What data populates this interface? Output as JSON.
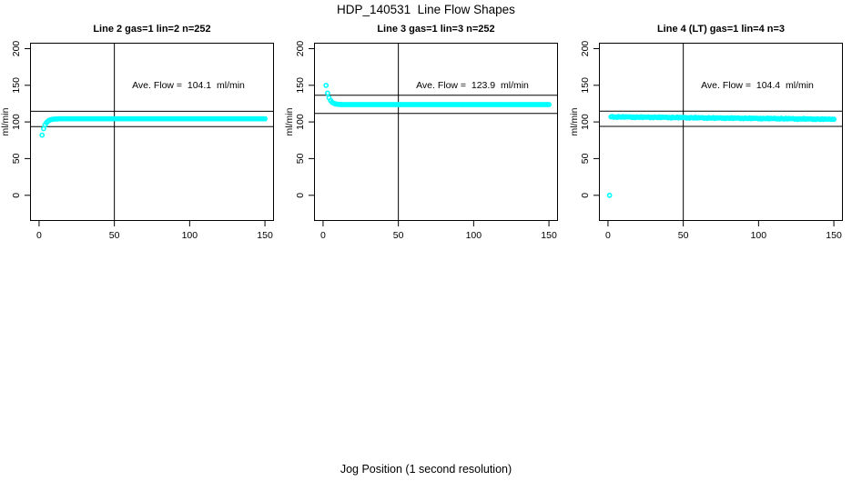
{
  "figure": {
    "title": "HDP_140531  Line Flow Shapes",
    "xlabel": "Jog Position (1 second resolution)"
  },
  "chart_data": [
    {
      "type": "scatter",
      "title": "Line 2 gas=1 lin=2 n=252",
      "annotation": "Ave. Flow =  104.1  ml/min",
      "ave_flow": 104.1,
      "ylabel": "ml/min",
      "point_color": "#00ffff",
      "line_color": "#000000",
      "xlim": [
        -6,
        156
      ],
      "ylim": [
        -35,
        208
      ],
      "x_ticks": [
        0,
        50,
        100,
        150
      ],
      "y_ticks": [
        0,
        50,
        100,
        150,
        200
      ],
      "vline_x": 50,
      "ref_lines": [
        114.5,
        93.7
      ],
      "x": [
        2,
        3,
        4,
        5,
        6,
        7,
        8,
        9,
        10,
        11,
        12,
        13,
        14,
        15,
        16,
        17,
        18,
        19,
        20,
        21,
        22,
        23,
        24,
        25,
        26,
        27,
        28,
        29,
        30,
        31,
        32,
        33,
        34,
        35,
        36,
        37,
        38,
        39,
        40,
        41,
        42,
        43,
        44,
        45,
        46,
        47,
        48,
        49,
        50,
        51,
        52,
        53,
        54,
        55,
        56,
        57,
        58,
        59,
        60,
        61,
        62,
        63,
        64,
        65,
        66,
        67,
        68,
        69,
        70,
        71,
        72,
        73,
        74,
        75,
        76,
        77,
        78,
        79,
        80,
        81,
        82,
        83,
        84,
        85,
        86,
        87,
        88,
        89,
        90,
        91,
        92,
        93,
        94,
        95,
        96,
        97,
        98,
        99,
        100,
        101,
        102,
        103,
        104,
        105,
        106,
        107,
        108,
        109,
        110,
        111,
        112,
        113,
        114,
        115,
        116,
        117,
        118,
        119,
        120,
        121,
        122,
        123,
        124,
        125,
        126,
        127,
        128,
        129,
        130,
        131,
        132,
        133,
        134,
        135,
        136,
        137,
        138,
        139,
        140,
        141,
        142,
        143,
        144,
        145,
        146,
        147,
        148,
        149,
        150
      ],
      "y": [
        82.0,
        90.8,
        96.1,
        99.3,
        101.3,
        102.5,
        103.2,
        103.6,
        103.9,
        104.0,
        104.1,
        104.2,
        104.3,
        104.3,
        104.3,
        104.3,
        104.3,
        104.3,
        104.3,
        104.3,
        104.3,
        104.3,
        104.3,
        104.3,
        104.3,
        104.3,
        104.3,
        104.3,
        104.3,
        104.3,
        104.3,
        104.3,
        104.3,
        104.3,
        104.3,
        104.3,
        104.3,
        104.3,
        104.3,
        104.3,
        104.3,
        104.3,
        104.3,
        104.3,
        104.3,
        104.3,
        104.3,
        104.3,
        104.3,
        104.3,
        104.3,
        104.3,
        104.3,
        104.3,
        104.3,
        104.3,
        104.3,
        104.3,
        104.3,
        104.3,
        104.3,
        104.3,
        104.3,
        104.3,
        104.3,
        104.3,
        104.3,
        104.3,
        104.3,
        104.3,
        104.3,
        104.3,
        104.3,
        104.3,
        104.3,
        104.3,
        104.3,
        104.3,
        104.3,
        104.3,
        104.3,
        104.3,
        104.3,
        104.3,
        104.3,
        104.3,
        104.3,
        104.3,
        104.3,
        104.3,
        104.3,
        104.3,
        104.3,
        104.3,
        104.3,
        104.3,
        104.3,
        104.3,
        104.3,
        104.3,
        104.3,
        104.3,
        104.3,
        104.3,
        104.3,
        104.3,
        104.3,
        104.3,
        104.3,
        104.3,
        104.3,
        104.3,
        104.3,
        104.3,
        104.3,
        104.3,
        104.3,
        104.3,
        104.3,
        104.3,
        104.3,
        104.3,
        104.3,
        104.3,
        104.3,
        104.3,
        104.3,
        104.3,
        104.3,
        104.3,
        104.3,
        104.3,
        104.3,
        104.3,
        104.3,
        104.3,
        104.3,
        104.3,
        104.3,
        104.3,
        104.3,
        104.3,
        104.3,
        104.3,
        104.3,
        104.3,
        104.3,
        104.3,
        104.3
      ]
    },
    {
      "type": "scatter",
      "title": "Line 3 gas=1 lin=3 n=252",
      "annotation": "Ave. Flow =  123.9  ml/min",
      "ave_flow": 123.9,
      "ylabel": "ml/min",
      "point_color": "#00ffff",
      "line_color": "#000000",
      "xlim": [
        -6,
        156
      ],
      "ylim": [
        -35,
        208
      ],
      "x_ticks": [
        0,
        50,
        100,
        150
      ],
      "y_ticks": [
        0,
        50,
        100,
        150,
        200
      ],
      "vline_x": 50,
      "ref_lines": [
        136.3,
        111.5
      ],
      "x": [
        2,
        3,
        4,
        5,
        6,
        7,
        8,
        9,
        10,
        11,
        12,
        13,
        14,
        15,
        16,
        17,
        18,
        19,
        20,
        21,
        22,
        23,
        24,
        25,
        26,
        27,
        28,
        29,
        30,
        31,
        32,
        33,
        34,
        35,
        36,
        37,
        38,
        39,
        40,
        41,
        42,
        43,
        44,
        45,
        46,
        47,
        48,
        49,
        50,
        51,
        52,
        53,
        54,
        55,
        56,
        57,
        58,
        59,
        60,
        61,
        62,
        63,
        64,
        65,
        66,
        67,
        68,
        69,
        70,
        71,
        72,
        73,
        74,
        75,
        76,
        77,
        78,
        79,
        80,
        81,
        82,
        83,
        84,
        85,
        86,
        87,
        88,
        89,
        90,
        91,
        92,
        93,
        94,
        95,
        96,
        97,
        98,
        99,
        100,
        101,
        102,
        103,
        104,
        105,
        106,
        107,
        108,
        109,
        110,
        111,
        112,
        113,
        114,
        115,
        116,
        117,
        118,
        119,
        120,
        121,
        122,
        123,
        124,
        125,
        126,
        127,
        128,
        129,
        130,
        131,
        132,
        133,
        134,
        135,
        136,
        137,
        138,
        139,
        140,
        141,
        142,
        143,
        144,
        145,
        146,
        147,
        148,
        149,
        150
      ],
      "y": [
        149.8,
        139.3,
        132.9,
        129.1,
        126.8,
        125.5,
        124.7,
        124.3,
        124.0,
        123.9,
        123.8,
        123.7,
        123.7,
        123.7,
        123.7,
        123.7,
        123.7,
        123.7,
        123.7,
        123.7,
        123.7,
        123.7,
        123.7,
        123.7,
        123.7,
        123.7,
        123.7,
        123.7,
        123.7,
        123.7,
        123.7,
        123.7,
        123.7,
        123.7,
        123.7,
        123.7,
        123.7,
        123.7,
        123.7,
        123.7,
        123.7,
        123.7,
        123.7,
        123.7,
        123.7,
        123.7,
        123.7,
        123.7,
        123.7,
        123.7,
        123.7,
        123.7,
        123.7,
        123.7,
        123.7,
        123.7,
        123.7,
        123.7,
        123.7,
        123.7,
        123.7,
        123.7,
        123.7,
        123.7,
        123.7,
        123.7,
        123.7,
        123.7,
        123.7,
        123.7,
        123.7,
        123.7,
        123.7,
        123.7,
        123.7,
        123.7,
        123.7,
        123.7,
        123.7,
        123.7,
        123.7,
        123.7,
        123.7,
        123.7,
        123.7,
        123.7,
        123.7,
        123.7,
        123.7,
        123.7,
        123.7,
        123.7,
        123.7,
        123.7,
        123.7,
        123.7,
        123.7,
        123.7,
        123.7,
        123.7,
        123.7,
        123.7,
        123.7,
        123.7,
        123.7,
        123.7,
        123.7,
        123.7,
        123.7,
        123.7,
        123.7,
        123.7,
        123.7,
        123.7,
        123.7,
        123.7,
        123.7,
        123.7,
        123.7,
        123.7,
        123.7,
        123.7,
        123.7,
        123.7,
        123.7,
        123.7,
        123.7,
        123.7,
        123.7,
        123.7,
        123.7,
        123.7,
        123.7,
        123.7,
        123.7,
        123.7,
        123.7,
        123.7,
        123.7,
        123.7,
        123.7,
        123.7,
        123.7,
        123.7,
        123.7,
        123.7,
        123.7,
        123.7,
        123.7
      ]
    },
    {
      "type": "scatter",
      "title": "Line 4 (LT) gas=1 lin=4 n=3",
      "annotation": "Ave. Flow =  104.4  ml/min",
      "ave_flow": 104.4,
      "ylabel": "ml/min",
      "point_color": "#00ffff",
      "line_color": "#000000",
      "xlim": [
        -6,
        156
      ],
      "ylim": [
        -35,
        208
      ],
      "x_ticks": [
        0,
        50,
        100,
        150
      ],
      "y_ticks": [
        0,
        50,
        100,
        150,
        200
      ],
      "vline_x": 50,
      "ref_lines": [
        114.8,
        94.0
      ],
      "x": [
        1,
        2,
        3,
        4,
        5,
        6,
        7,
        8,
        9,
        10,
        11,
        12,
        13,
        14,
        15,
        16,
        17,
        18,
        19,
        20,
        21,
        22,
        23,
        24,
        25,
        26,
        27,
        28,
        29,
        30,
        31,
        32,
        33,
        34,
        35,
        36,
        37,
        38,
        39,
        40,
        41,
        42,
        43,
        44,
        45,
        46,
        47,
        48,
        49,
        50,
        51,
        52,
        53,
        54,
        55,
        56,
        57,
        58,
        59,
        60,
        61,
        62,
        63,
        64,
        65,
        66,
        67,
        68,
        69,
        70,
        71,
        72,
        73,
        74,
        75,
        76,
        77,
        78,
        79,
        80,
        81,
        82,
        83,
        84,
        85,
        86,
        87,
        88,
        89,
        90,
        91,
        92,
        93,
        94,
        95,
        96,
        97,
        98,
        99,
        100,
        101,
        102,
        103,
        104,
        105,
        106,
        107,
        108,
        109,
        110,
        111,
        112,
        113,
        114,
        115,
        116,
        117,
        118,
        119,
        120,
        121,
        122,
        123,
        124,
        125,
        126,
        127,
        128,
        129,
        130,
        131,
        132,
        133,
        134,
        135,
        136,
        137,
        138,
        139,
        140,
        141,
        142,
        143,
        144,
        145,
        146,
        147,
        148,
        149,
        150
      ],
      "y": [
        0.0,
        107.0,
        107.3,
        106.4,
        107.0,
        106.2,
        107.2,
        106.8,
        106.5,
        107.4,
        106.3,
        107.1,
        106.7,
        106.9,
        107.0,
        106.1,
        106.7,
        105.9,
        106.9,
        106.5,
        106.2,
        107.1,
        106.0,
        106.8,
        106.4,
        106.6,
        106.8,
        105.9,
        106.5,
        105.7,
        106.7,
        106.3,
        106.0,
        106.9,
        105.8,
        106.6,
        106.2,
        106.4,
        106.5,
        105.6,
        106.2,
        105.4,
        106.4,
        106.0,
        105.7,
        106.6,
        105.5,
        106.3,
        105.9,
        106.1,
        106.2,
        105.3,
        105.9,
        105.1,
        106.1,
        105.7,
        105.4,
        106.3,
        105.2,
        106.0,
        105.6,
        105.8,
        105.9,
        105.0,
        105.6,
        104.8,
        105.8,
        105.4,
        105.1,
        106.0,
        104.9,
        105.7,
        105.3,
        105.5,
        105.7,
        104.8,
        105.4,
        104.6,
        105.6,
        105.2,
        104.9,
        105.8,
        104.7,
        105.5,
        105.1,
        105.3,
        105.4,
        104.5,
        105.1,
        104.3,
        105.3,
        104.9,
        104.6,
        105.5,
        104.4,
        105.2,
        104.8,
        105.0,
        105.1,
        104.2,
        104.8,
        104.0,
        105.0,
        104.6,
        104.3,
        105.2,
        104.1,
        104.9,
        104.5,
        104.7,
        104.9,
        104.0,
        104.6,
        103.8,
        104.8,
        104.4,
        104.1,
        105.0,
        103.9,
        104.7,
        104.3,
        104.5,
        104.6,
        103.7,
        104.3,
        103.5,
        104.5,
        104.1,
        103.8,
        104.7,
        103.6,
        104.4,
        104.0,
        104.2,
        104.3,
        103.4,
        104.0,
        103.2,
        104.2,
        103.8,
        103.5,
        104.4,
        103.3,
        104.1,
        103.7,
        103.9,
        104.0,
        103.5,
        103.8,
        103.6
      ]
    }
  ]
}
